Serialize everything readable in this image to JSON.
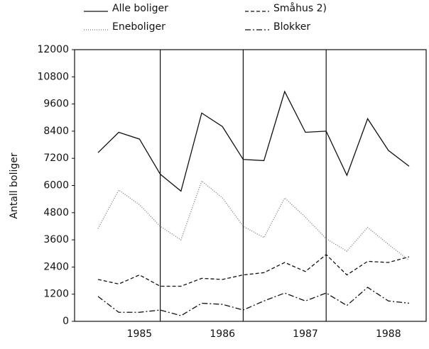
{
  "chart_data": {
    "type": "line",
    "y_label": "Antall boliger",
    "categories": [
      null,
      null,
      "1985",
      null,
      null,
      null,
      "1986",
      null,
      null,
      null,
      "1987",
      null,
      null,
      null,
      "1988",
      null
    ],
    "series": [
      {
        "name": "Alle boliger",
        "color": "#111111",
        "dash": "none",
        "values": [
          7450,
          8350,
          8050,
          6500,
          5750,
          9200,
          8600,
          7150,
          7100,
          10150,
          8350,
          8400,
          6450,
          8950,
          7550,
          6850
        ]
      },
      {
        "name": "Småhus 2)",
        "color": "#111111",
        "dash": "5 3",
        "values": [
          1850,
          1650,
          2050,
          1550,
          1550,
          1900,
          1850,
          2050,
          2150,
          2600,
          2200,
          2950,
          2050,
          2650,
          2600,
          2850
        ]
      },
      {
        "name": "Eneboliger",
        "color": "#777777",
        "dash": "1 2",
        "values": [
          4100,
          5800,
          5150,
          4200,
          3600,
          6200,
          5450,
          4200,
          3700,
          5450,
          4600,
          3650,
          3100,
          4150,
          3400,
          2700
        ]
      },
      {
        "name": "Blokker",
        "color": "#111111",
        "dash": "8 3 2 3",
        "values": [
          1100,
          400,
          400,
          500,
          250,
          800,
          750,
          500,
          900,
          1250,
          900,
          1250,
          700,
          1500,
          900,
          800
        ]
      }
    ],
    "ylim": [
      0,
      12000
    ],
    "yticks": [
      0,
      1200,
      2400,
      3600,
      4800,
      6000,
      7200,
      8400,
      9600,
      10800,
      12000
    ],
    "grid": false
  }
}
